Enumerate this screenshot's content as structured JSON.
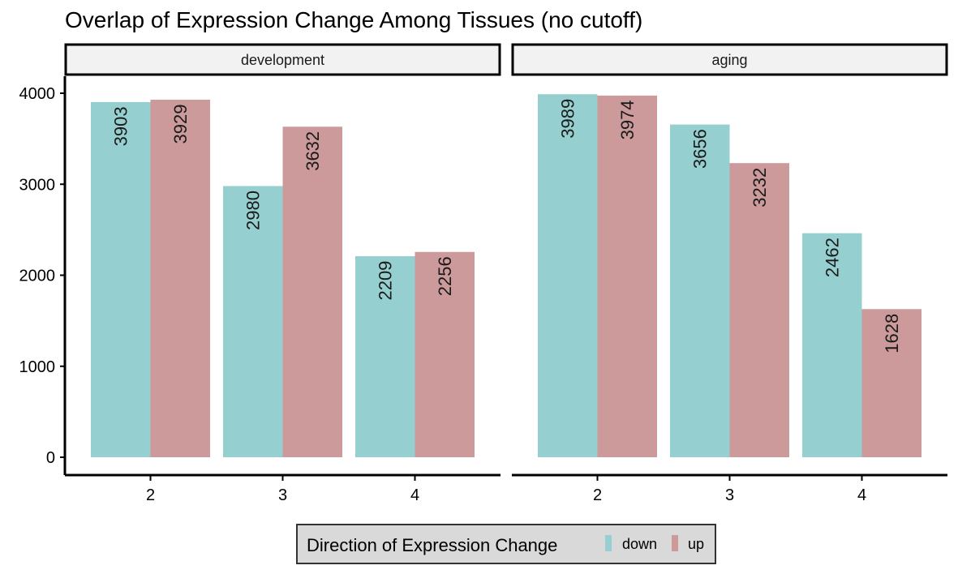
{
  "chart_data": {
    "type": "bar",
    "title": "Overlap of Expression Change Among Tissues (no cutoff)",
    "xlabel": "",
    "ylabel": "",
    "ylim": [
      0,
      4000
    ],
    "yticks": [
      0,
      1000,
      2000,
      3000,
      4000
    ],
    "categories": [
      "2",
      "3",
      "4"
    ],
    "facets": [
      {
        "name": "development",
        "series": [
          {
            "name": "down",
            "values": [
              3903,
              2980,
              2209
            ]
          },
          {
            "name": "up",
            "values": [
              3929,
              3632,
              2256
            ]
          }
        ]
      },
      {
        "name": "aging",
        "series": [
          {
            "name": "down",
            "values": [
              3989,
              3656,
              2462
            ]
          },
          {
            "name": "up",
            "values": [
              3974,
              3232,
              1628
            ]
          }
        ]
      }
    ],
    "legend": {
      "title": "Direction of Expression Change",
      "position": "bottom",
      "entries": [
        {
          "label": "down",
          "color": "#96CFCF"
        },
        {
          "label": "up",
          "color": "#CC9A9A"
        }
      ]
    },
    "grid": false
  }
}
